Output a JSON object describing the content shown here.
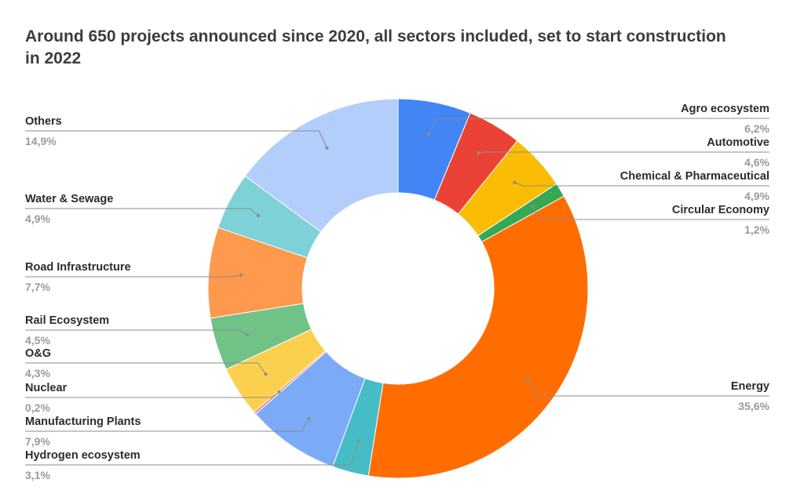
{
  "chart_data": {
    "type": "pie",
    "variant": "donut",
    "title": "Around 650 projects announced since 2020, all sectors included, set to start construction in 2022",
    "slices": [
      {
        "label": "Agro ecosystem",
        "value": 6.2,
        "display": "6,2%",
        "color": "#4285f4",
        "side": "right"
      },
      {
        "label": "Automotive",
        "value": 4.6,
        "display": "4,6%",
        "color": "#ea4335",
        "side": "right"
      },
      {
        "label": "Chemical & Pharmaceutical",
        "value": 4.9,
        "display": "4,9%",
        "color": "#fbbc04",
        "side": "right"
      },
      {
        "label": "Circular Economy",
        "value": 1.2,
        "display": "1,2%",
        "color": "#34a853",
        "side": "right"
      },
      {
        "label": "Energy",
        "value": 35.6,
        "display": "35,6%",
        "color": "#ff6d01",
        "side": "right"
      },
      {
        "label": "Hydrogen ecosystem",
        "value": 3.1,
        "display": "3,1%",
        "color": "#46bdc6",
        "side": "left"
      },
      {
        "label": "Manufacturing Plants",
        "value": 7.9,
        "display": "7,9%",
        "color": "#7baaf7",
        "side": "left"
      },
      {
        "label": "Nuclear",
        "value": 0.2,
        "display": "0,2%",
        "color": "#f07b72",
        "side": "left"
      },
      {
        "label": "O&G",
        "value": 4.3,
        "display": "4,3%",
        "color": "#fcd04f",
        "side": "left"
      },
      {
        "label": "Rail Ecosystem",
        "value": 4.5,
        "display": "4,5%",
        "color": "#71c287",
        "side": "left"
      },
      {
        "label": "Road Infrastructure",
        "value": 7.7,
        "display": "7,7%",
        "color": "#ff994d",
        "side": "left"
      },
      {
        "label": "Water & Sewage",
        "value": 4.9,
        "display": "4,9%",
        "color": "#7ed1d7",
        "side": "left"
      },
      {
        "label": "Others",
        "value": 14.9,
        "display": "14,9%",
        "color": "#b3cefb",
        "side": "left"
      }
    ],
    "legend": "none"
  }
}
